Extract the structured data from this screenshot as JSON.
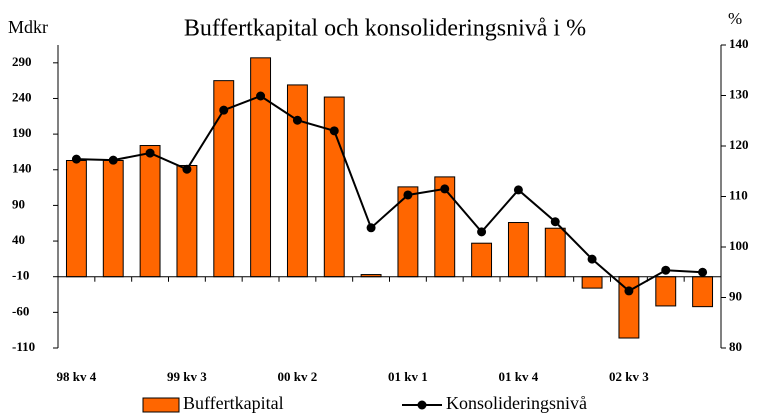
{
  "chart_data": {
    "type": "bar-line",
    "title": "Buffertkapital och konsolideringsnivå i %",
    "y_label": "Mdkr",
    "y2_label": "%",
    "categories": [
      "98 kv 4",
      null,
      null,
      "99 kv 3",
      null,
      null,
      "00 kv 2",
      null,
      null,
      "01 kv 1",
      null,
      null,
      "01 kv 4",
      null,
      null,
      "02 kv 3",
      null,
      null
    ],
    "series": [
      {
        "name": "Buffertkapital",
        "type": "bar",
        "color": "#ff6600",
        "values": [
          153,
          153,
          174,
          146,
          265,
          297,
          259,
          242,
          -7,
          116,
          130,
          37,
          66,
          58,
          -26,
          -96,
          -51,
          -52
        ]
      },
      {
        "name": "Konsolideringsnivå",
        "type": "line",
        "axis": "y2",
        "color": "#000000",
        "values": [
          117.4,
          117.2,
          118.6,
          115.4,
          127.1,
          129.9,
          125.1,
          123.0,
          103.8,
          110.3,
          111.5,
          103.0,
          111.3,
          105.0,
          97.6,
          91.3,
          95.4,
          95.0
        ]
      }
    ],
    "ylim": [
      -110,
      315
    ],
    "yticks": [
      -110,
      -60,
      -10,
      40,
      90,
      140,
      190,
      240,
      290
    ],
    "y2lim": [
      80,
      140
    ],
    "y2ticks": [
      80,
      90,
      100,
      110,
      120,
      130,
      140
    ],
    "x_axis_crossing": -10,
    "grid": false
  }
}
